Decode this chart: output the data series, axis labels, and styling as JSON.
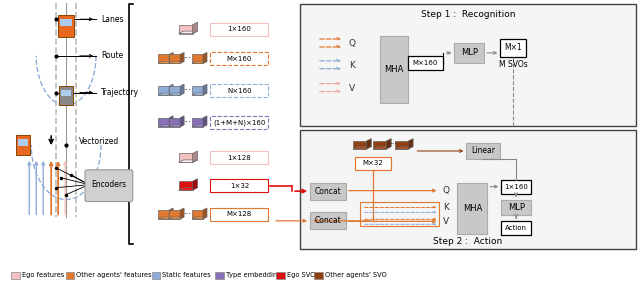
{
  "fig_width": 6.4,
  "fig_height": 3.01,
  "dpi": 100,
  "bg_color": "#ffffff",
  "colors": {
    "ego": "#f5c0c0",
    "other_agents": "#e07830",
    "static": "#90acd8",
    "type_embed": "#8870b8",
    "ego_svo": "#dd1010",
    "other_svo": "#904010",
    "gray_box": "#c8c8c8",
    "box_bg": "#f2f2f2",
    "orange_arrow": "#e07830",
    "blue_arrow": "#90acd8",
    "pink_arrow": "#f0a8a8"
  },
  "legend": [
    {
      "label": "Ego features",
      "color": "#f5c0c0"
    },
    {
      "label": "Other agents' features",
      "color": "#e07830"
    },
    {
      "label": "Static features",
      "color": "#90acd8"
    },
    {
      "label": "Type embedding",
      "color": "#8870b8"
    },
    {
      "label": "Ego SVO",
      "color": "#dd1010"
    },
    {
      "label": "Other agents' SVO",
      "color": "#904010"
    }
  ]
}
